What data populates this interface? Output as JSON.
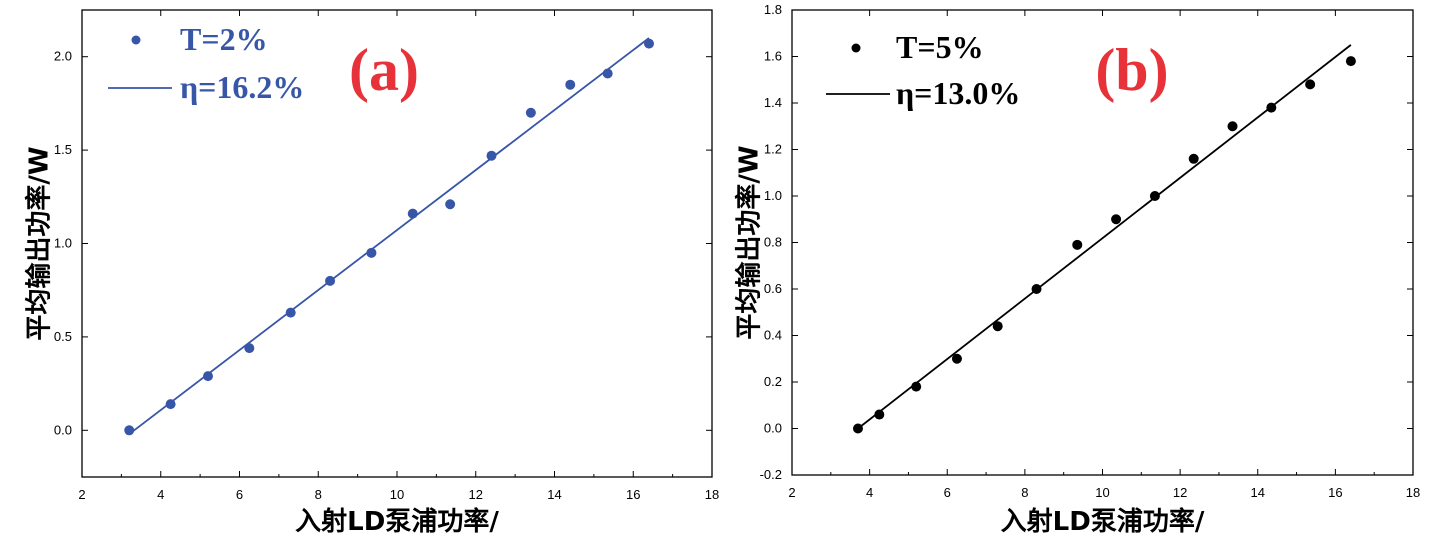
{
  "chart_data": [
    {
      "type": "scatter",
      "panel_label": "(a)",
      "xlabel": "入射LD泵浦功率/",
      "ylabel": "平均输出功率/W",
      "xlim": [
        2,
        18
      ],
      "ylim": [
        -0.25,
        2.25
      ],
      "xticks": [
        2,
        4,
        6,
        8,
        10,
        12,
        14,
        16,
        18
      ],
      "yticks": [
        0.0,
        0.5,
        1.0,
        1.5,
        2.0
      ],
      "ytick_labels": [
        "0.0",
        "0.5",
        "1.0",
        "1.5",
        "2.0"
      ],
      "color": "#3856a8",
      "series": [
        {
          "name": "T=2%",
          "x": [
            3.2,
            4.25,
            5.2,
            6.25,
            7.3,
            8.3,
            9.35,
            10.4,
            11.35,
            12.4,
            13.4,
            14.4,
            15.35,
            16.4
          ],
          "y": [
            0.0,
            0.14,
            0.29,
            0.44,
            0.63,
            0.8,
            0.95,
            1.16,
            1.21,
            1.47,
            1.7,
            1.85,
            1.91,
            2.07
          ]
        }
      ],
      "fit": {
        "name": "η=16.2%",
        "x": [
          3.2,
          16.4
        ],
        "y": [
          -0.02,
          2.1
        ]
      },
      "legend_position": "top-left"
    },
    {
      "type": "scatter",
      "panel_label": "(b)",
      "xlabel": "入射LD泵浦功率/",
      "ylabel": "平均输出功率/W",
      "xlim": [
        2,
        18
      ],
      "ylim": [
        -0.2,
        1.8
      ],
      "xticks": [
        2,
        4,
        6,
        8,
        10,
        12,
        14,
        16,
        18
      ],
      "yticks": [
        -0.2,
        0.0,
        0.2,
        0.4,
        0.6,
        0.8,
        1.0,
        1.2,
        1.4,
        1.6,
        1.8
      ],
      "ytick_labels": [
        "-0.2",
        "0.0",
        "0.2",
        "0.4",
        "0.6",
        "0.8",
        "1.0",
        "1.2",
        "1.4",
        "1.6",
        "1.8"
      ],
      "color": "#000000",
      "series": [
        {
          "name": "T=5%",
          "x": [
            3.7,
            4.25,
            5.2,
            6.25,
            7.3,
            8.3,
            9.35,
            10.35,
            11.35,
            12.35,
            13.35,
            14.35,
            15.35,
            16.4
          ],
          "y": [
            0.0,
            0.06,
            0.18,
            0.3,
            0.44,
            0.6,
            0.79,
            0.9,
            1.0,
            1.16,
            1.3,
            1.38,
            1.48,
            1.58
          ]
        }
      ],
      "fit": {
        "name": "η=13.0%",
        "x": [
          3.7,
          16.4
        ],
        "y": [
          0.0,
          1.65
        ]
      },
      "legend_position": "top-left"
    }
  ]
}
